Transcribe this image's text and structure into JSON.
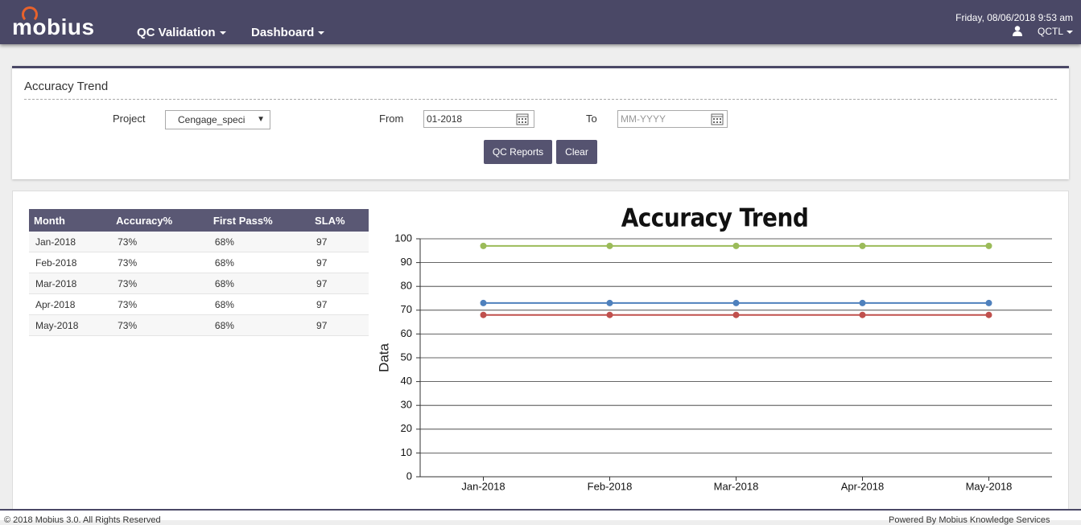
{
  "header": {
    "logo": "mobius",
    "nav": [
      "QC Validation",
      "Dashboard"
    ],
    "datetime": "Friday, 08/06/2018 9:53 am",
    "user": "QCTL"
  },
  "filter": {
    "title": "Accuracy Trend",
    "project_label": "Project",
    "project_value": "Cengage_speci",
    "from_label": "From",
    "from_value": "01-2018",
    "to_label": "To",
    "to_placeholder": "MM-YYYY",
    "buttons": [
      "QC Reports",
      "Clear"
    ]
  },
  "table": {
    "columns": [
      "Month",
      "Accuracy%",
      "First Pass%",
      "SLA%"
    ],
    "rows": [
      [
        "Jan-2018",
        "73%",
        "68%",
        "97"
      ],
      [
        "Feb-2018",
        "73%",
        "68%",
        "97"
      ],
      [
        "Mar-2018",
        "73%",
        "68%",
        "97"
      ],
      [
        "Apr-2018",
        "73%",
        "68%",
        "97"
      ],
      [
        "May-2018",
        "73%",
        "68%",
        "97"
      ]
    ]
  },
  "chart_data": {
    "type": "line",
    "title": "Accuracy Trend",
    "y_label": "Data",
    "categories": [
      "Jan-2018",
      "Feb-2018",
      "Mar-2018",
      "Apr-2018",
      "May-2018"
    ],
    "series": [
      {
        "color": "#9bbb59",
        "values": [
          97,
          97,
          97,
          97,
          97
        ]
      },
      {
        "color": "#4f81bd",
        "values": [
          73,
          73,
          73,
          73,
          73
        ]
      },
      {
        "color": "#c0504d",
        "values": [
          68,
          68,
          68,
          68,
          68
        ]
      }
    ],
    "ylim": [
      0,
      100
    ],
    "yticks": [
      0,
      10,
      20,
      30,
      40,
      50,
      60,
      70,
      80,
      90,
      100
    ],
    "grid": true
  },
  "footer": {
    "left": "© 2018 Mobius 3.0. All Rights Reserved",
    "right": "Powered By Mobius Knowledge Services"
  }
}
